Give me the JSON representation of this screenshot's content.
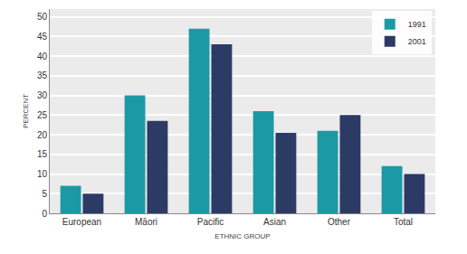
{
  "chart_data": {
    "type": "bar",
    "x_label": "ETHNIC GROUP",
    "y_label": "PERCENT",
    "categories": [
      "European",
      "Māori",
      "Pacific",
      "Asian",
      "Other",
      "Total"
    ],
    "series": [
      {
        "name": "1991",
        "color": "#1b9aa6",
        "values": [
          7,
          30,
          47,
          26,
          21,
          12
        ]
      },
      {
        "name": "2001",
        "color": "#2c3a66",
        "values": [
          5,
          23.5,
          43,
          20.5,
          25,
          10
        ]
      }
    ],
    "ylim": [
      0,
      52
    ],
    "yticks": [
      0,
      5,
      10,
      15,
      20,
      25,
      30,
      35,
      40,
      45,
      50
    ],
    "grid": true,
    "legend": "top-right"
  }
}
